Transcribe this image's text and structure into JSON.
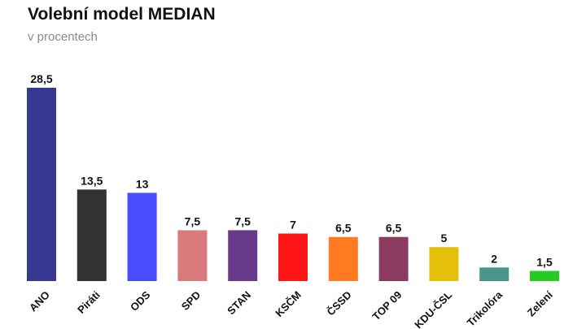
{
  "chart_data": {
    "type": "bar",
    "title": "Volební model MEDIAN",
    "subtitle": "v procentech",
    "categories": [
      "ANO",
      "Piráti",
      "ODS",
      "SPD",
      "STAN",
      "KSČM",
      "ČSSD",
      "TOP 09",
      "KDU-ČSL",
      "Trikolóra",
      "Zelení"
    ],
    "values": [
      28.5,
      13.5,
      13,
      7.5,
      7.5,
      7,
      6.5,
      6.5,
      5,
      2,
      1.5
    ],
    "value_labels": [
      "28,5",
      "13,5",
      "13",
      "7,5",
      "7,5",
      "7",
      "6,5",
      "6,5",
      "5",
      "2",
      "1,5"
    ],
    "colors": [
      "#36398f",
      "#333333",
      "#4a4aff",
      "#d97b7b",
      "#673a8a",
      "#ff1515",
      "#ff7a20",
      "#8b3a60",
      "#e5c00a",
      "#4a9688",
      "#22cc22"
    ],
    "ylim": [
      0,
      28.5
    ],
    "grid": false,
    "legend": "none"
  }
}
